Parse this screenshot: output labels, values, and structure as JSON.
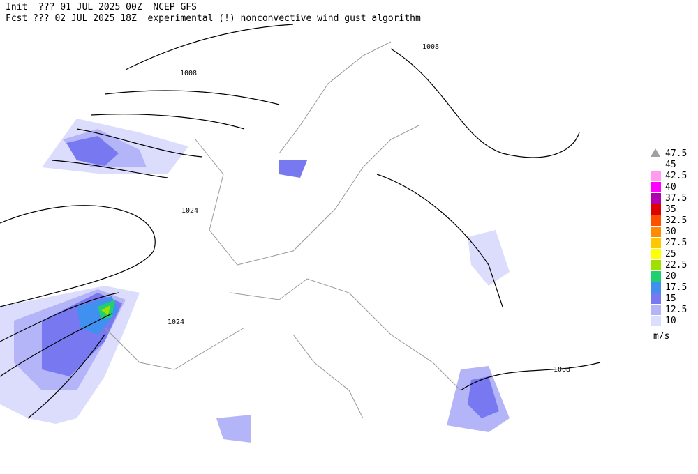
{
  "header": {
    "line1": "Init  ??? 01 JUL 2025 00Z  NCEP GFS",
    "line2": "Fcst ??? 02 JUL 2025 18Z  experimental (!) nonconvective wind gust algorithm"
  },
  "legend": {
    "labels": [
      "47.5",
      "45",
      "42.5",
      "40",
      "37.5",
      "35",
      "32.5",
      "30",
      "27.5",
      "25",
      "22.5",
      "20",
      "17.5",
      "15",
      "12.5",
      "10"
    ],
    "colors": [
      "#a0a0a0",
      "#ffffff",
      "#ff9cee",
      "#ff00ff",
      "#b000b0",
      "#e00000",
      "#ff5000",
      "#ff8c00",
      "#ffc800",
      "#ffff00",
      "#a0e000",
      "#20d070",
      "#4090f0",
      "#7878f0",
      "#b4b4f8",
      "#dcdcfc"
    ],
    "unit": "m/s"
  },
  "map": {
    "isobar_labels": [
      "1008",
      "1008",
      "1024",
      "1024",
      "1008"
    ]
  }
}
